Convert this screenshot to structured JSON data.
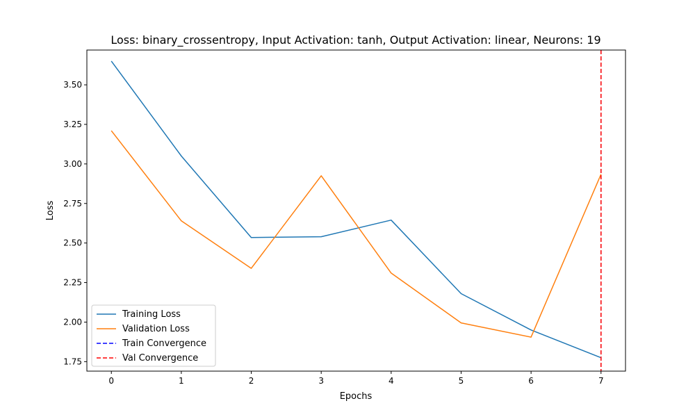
{
  "chart_data": {
    "type": "line",
    "title": "Loss: binary_crossentropy, Input Activation: tanh, Output Activation: linear, Neurons: 19",
    "xlabel": "Epochs",
    "ylabel": "Loss",
    "x": [
      0,
      1,
      2,
      3,
      4,
      5,
      6,
      7
    ],
    "xlim": [
      -0.35,
      7.35
    ],
    "ylim": [
      1.69,
      3.72
    ],
    "xticks": [
      "0",
      "1",
      "2",
      "3",
      "4",
      "5",
      "6",
      "7"
    ],
    "yticks": [
      "1.75",
      "2.00",
      "2.25",
      "2.50",
      "2.75",
      "3.00",
      "3.25",
      "3.50"
    ],
    "grid": false,
    "legend_position": "lower-left",
    "series": [
      {
        "name": "Training Loss",
        "color": "#1f77b4",
        "values": [
          3.65,
          3.05,
          2.535,
          2.54,
          2.645,
          2.18,
          1.95,
          1.775
        ]
      },
      {
        "name": "Validation Loss",
        "color": "#ff7f0e",
        "values": [
          3.21,
          2.64,
          2.34,
          2.925,
          2.31,
          1.995,
          1.905,
          2.935
        ]
      }
    ],
    "vlines": [
      {
        "name": "Train Convergence",
        "color": "#0000ff",
        "x": 7,
        "style": "dashed"
      },
      {
        "name": "Val Convergence",
        "color": "#ff0000",
        "x": 7,
        "style": "dashed"
      }
    ]
  }
}
